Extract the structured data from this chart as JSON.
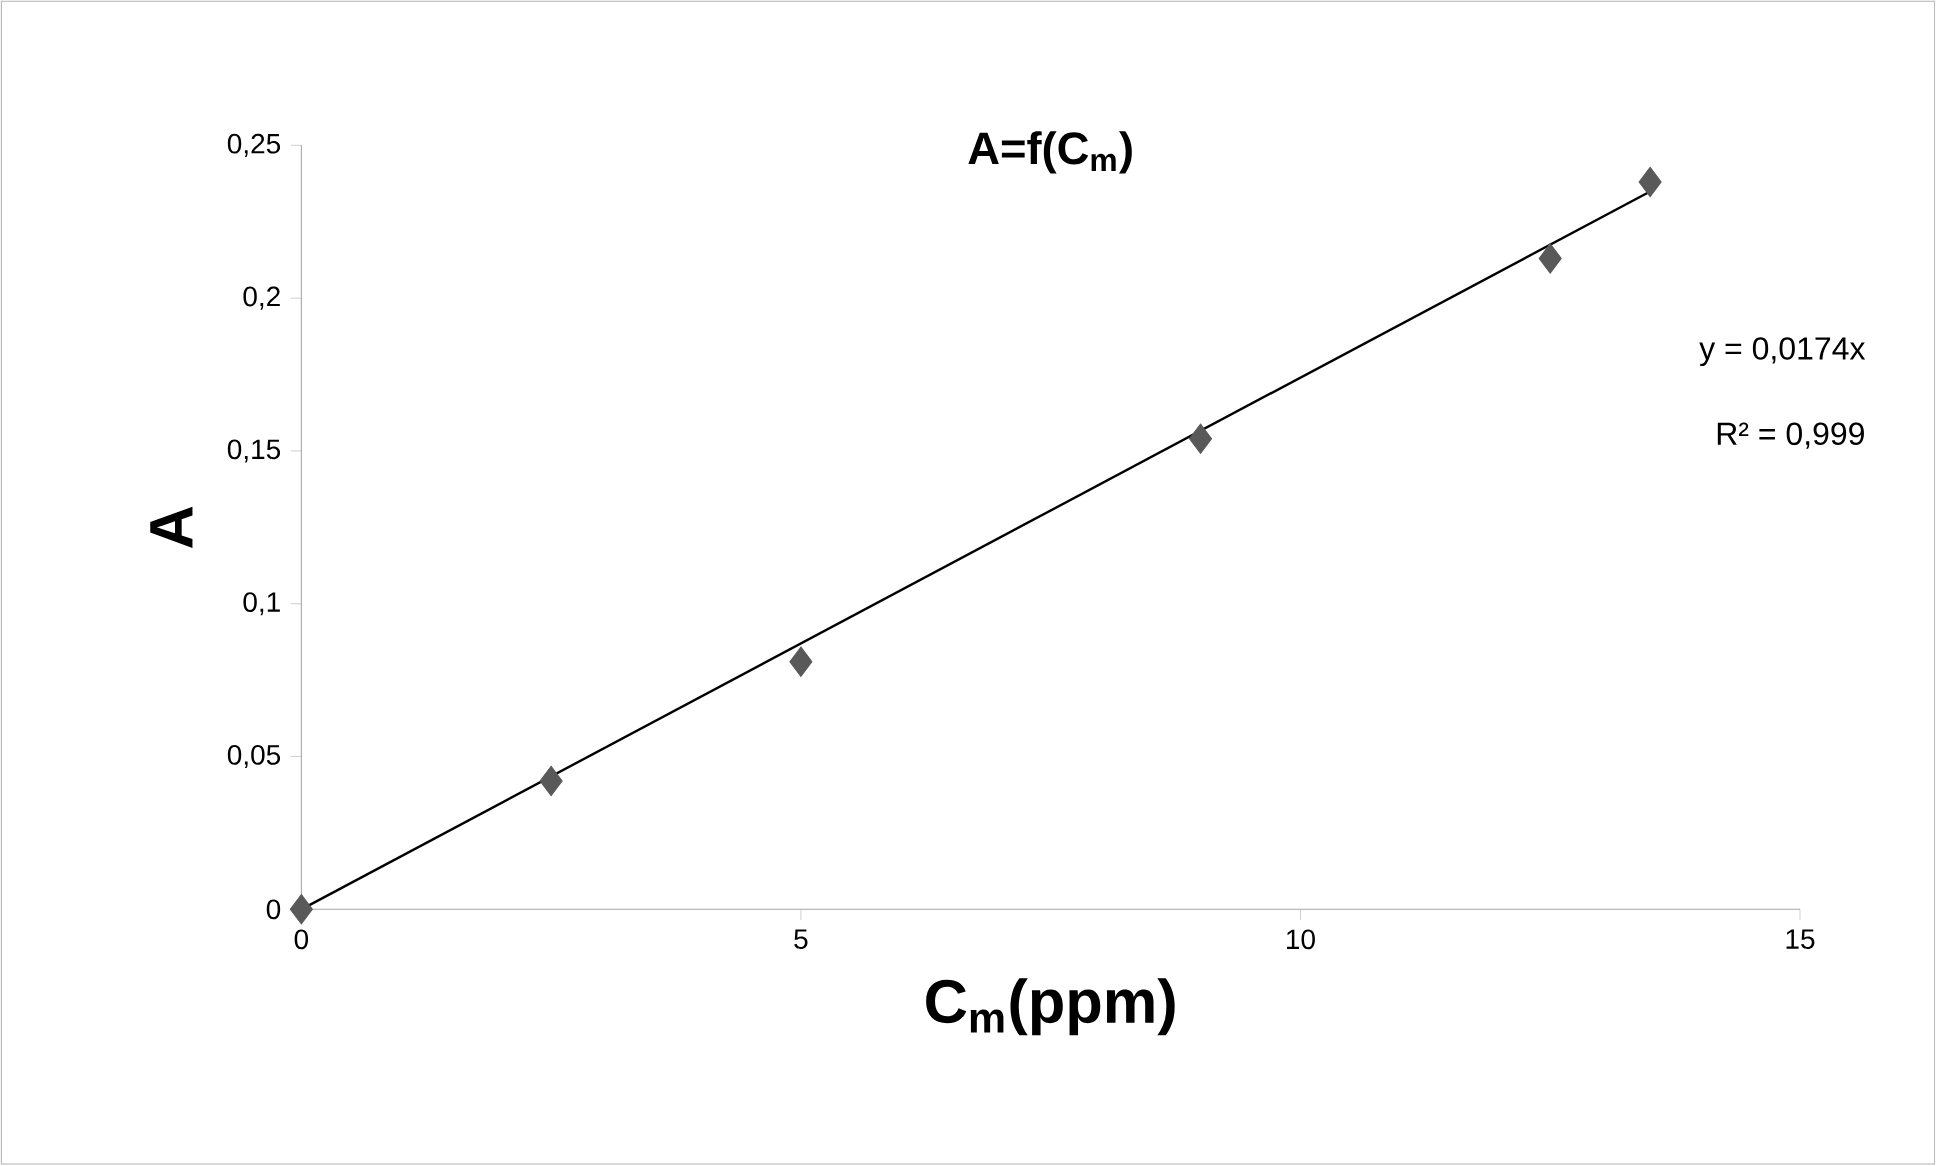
{
  "chart_data": {
    "type": "scatter",
    "title": "A=f(C$_{m}$)",
    "xlabel": "C$_{m}$(ppm)",
    "ylabel": "A",
    "xlim": [
      0,
      15
    ],
    "xticks": [
      0,
      5,
      10,
      15
    ],
    "ylim": [
      0,
      0.25
    ],
    "yticks": [
      0,
      {
        "value": 0.05,
        "label": "0,05"
      },
      {
        "value": 0.1,
        "label": "0,1"
      },
      {
        "value": 0.15,
        "label": "0,15"
      },
      {
        "value": 0.2,
        "label": "0,2"
      },
      {
        "value": 0.25,
        "label": "0,25"
      }
    ],
    "series": [
      {
        "marker": "diamond",
        "color": "#595959",
        "x": [
          0,
          2.5,
          5,
          9,
          12.5,
          13.5
        ],
        "values": [
          0,
          0.042,
          0.081,
          0.154,
          0.213,
          0.238
        ]
      },
      {
        "type": "line",
        "color": "#000000",
        "x": [
          0,
          13.5
        ],
        "values": [
          0,
          0.2349
        ]
      }
    ],
    "annotations": [
      "y = 0,0174x",
      "R² = 0,999"
    ]
  }
}
